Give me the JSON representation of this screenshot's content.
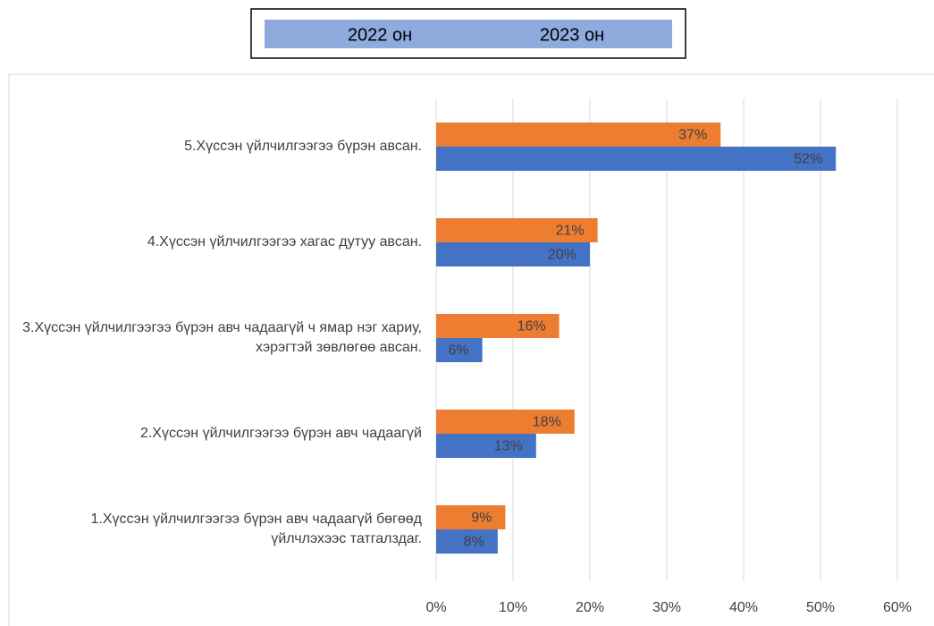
{
  "chart_data": {
    "type": "bar",
    "orientation": "horizontal",
    "categories": [
      "1.Хүссэн үйлчилгээгээ бүрэн авч чадаагүй бөгөөд үйлчлэхээс татгалздаг.",
      "2.Хүссэн үйлчилгээгээ бүрэн авч чадаагүй",
      "3.Хүссэн үйлчилгээгээ бүрэн авч чадаагүй ч ямар нэг хариу, хэрэгтэй зөвлөгөө авсан.",
      "4.Хүссэн үйлчилгээгээ хагас дутуу авсан.",
      "5.Хүссэн үйлчилгээгээ бүрэн авсан."
    ],
    "series": [
      {
        "name": "2022 он",
        "color": "#4472c4",
        "values": [
          8,
          13,
          6,
          20,
          52
        ],
        "value_labels": [
          "8%",
          "13%",
          "6%",
          "20%",
          "52%"
        ]
      },
      {
        "name": "2023 он",
        "color": "#ed7d31",
        "values": [
          9,
          18,
          16,
          21,
          37
        ],
        "value_labels": [
          "9%",
          "18%",
          "16%",
          "21%",
          "37%"
        ]
      }
    ],
    "xlim": [
      0,
      60
    ],
    "xticks": [
      {
        "value": 0,
        "label": "0%"
      },
      {
        "value": 10,
        "label": "10%"
      },
      {
        "value": 20,
        "label": "20%"
      },
      {
        "value": 30,
        "label": "30%"
      },
      {
        "value": 40,
        "label": "40%"
      },
      {
        "value": 50,
        "label": "50%"
      },
      {
        "value": 60,
        "label": "60%"
      }
    ],
    "grid": true
  }
}
